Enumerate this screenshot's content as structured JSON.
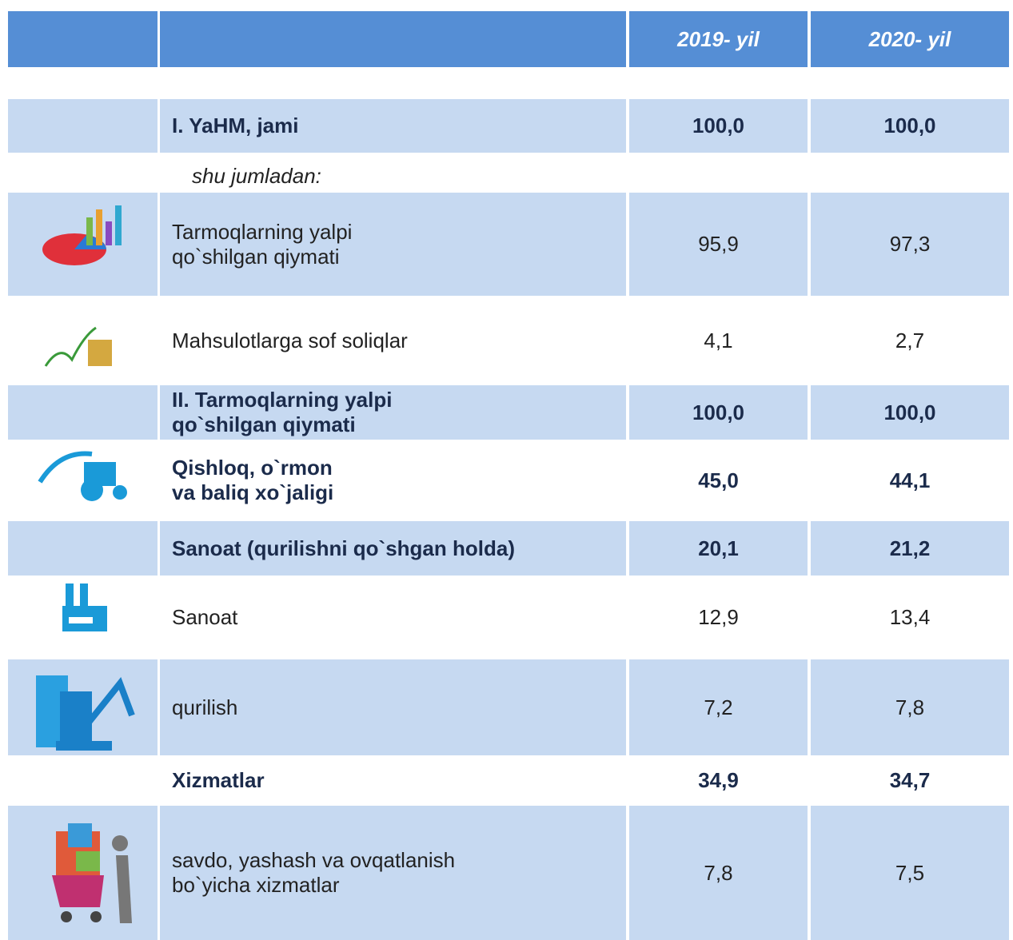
{
  "header": {
    "columns": [
      "2019- yil",
      "2020- yil"
    ]
  },
  "subheading": "shu jumladan:",
  "table": {
    "rows": [
      {
        "label": [
          "I. YaHM, jami"
        ],
        "values": [
          "100,0",
          "100,0"
        ]
      },
      {
        "label": [
          "Tarmoqlarning yalpi",
          "qo`shilgan qiymati"
        ],
        "values": [
          "95,9",
          "97,3"
        ]
      },
      {
        "label": [
          "Mahsulotlarga sof soliqlar"
        ],
        "values": [
          "4,1",
          "2,7"
        ]
      },
      {
        "label": [
          "II. Tarmoqlarning yalpi",
          "qo`shilgan qiymati"
        ],
        "values": [
          "100,0",
          "100,0"
        ]
      },
      {
        "label": [
          "Qishloq, o`rmon",
          "va baliq xo`jaligi"
        ],
        "values": [
          "45,0",
          "44,1"
        ]
      },
      {
        "label": [
          "Sanoat (qurilishni qo`shgan holda)"
        ],
        "values": [
          "20,1",
          "21,2"
        ]
      },
      {
        "label": [
          "Sanoat"
        ],
        "values": [
          "12,9",
          "13,4"
        ]
      },
      {
        "label": [
          "qurilish"
        ],
        "values": [
          "7,2",
          "7,8"
        ]
      },
      {
        "label": [
          "Xizmatlar"
        ],
        "values": [
          "34,9",
          "34,7"
        ]
      },
      {
        "label": [
          "savdo, yashash va ovqatlanish",
          "bo`yicha xizmatlar"
        ],
        "values": [
          "7,8",
          "7,5"
        ]
      }
    ]
  }
}
